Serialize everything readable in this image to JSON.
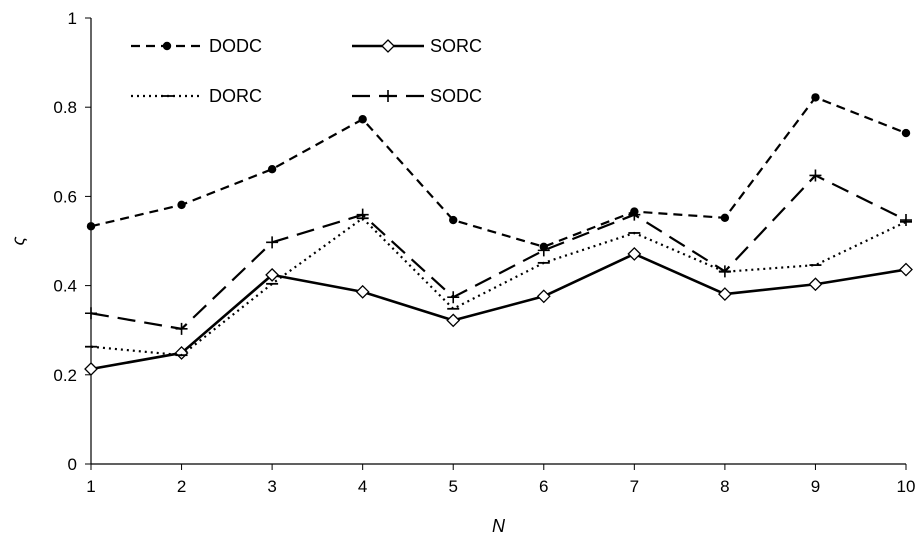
{
  "chart_data": {
    "type": "line",
    "xlabel": "N",
    "ylabel": "ς",
    "x": [
      1,
      2,
      3,
      4,
      5,
      6,
      7,
      8,
      9,
      10
    ],
    "xlim": [
      1,
      10
    ],
    "ylim": [
      0,
      1
    ],
    "x_ticks": [
      "1",
      "2",
      "3",
      "4",
      "5",
      "6",
      "7",
      "8",
      "9",
      "10"
    ],
    "y_ticks": [
      "0",
      "0.2",
      "0.4",
      "0.6",
      "0.8",
      "1"
    ],
    "grid": false,
    "legend_position": "top-left",
    "series": [
      {
        "name": "DODC",
        "style": "dashed",
        "marker": "dot",
        "color": "#000000",
        "values": [
          0.533,
          0.581,
          0.661,
          0.773,
          0.547,
          0.487,
          0.566,
          0.552,
          0.822,
          0.742
        ]
      },
      {
        "name": "SORC",
        "style": "solid",
        "marker": "diamond",
        "color": "#000000",
        "values": [
          0.213,
          0.249,
          0.424,
          0.386,
          0.322,
          0.376,
          0.471,
          0.381,
          0.403,
          0.436
        ]
      },
      {
        "name": "DORC",
        "style": "dotted",
        "marker": "dash",
        "color": "#000000",
        "values": [
          0.263,
          0.244,
          0.404,
          0.551,
          0.348,
          0.451,
          0.518,
          0.431,
          0.446,
          0.543
        ]
      },
      {
        "name": "SODC",
        "style": "longdash",
        "marker": "plus",
        "color": "#000000",
        "values": [
          0.338,
          0.303,
          0.497,
          0.559,
          0.374,
          0.479,
          0.559,
          0.432,
          0.647,
          0.547
        ]
      }
    ]
  }
}
